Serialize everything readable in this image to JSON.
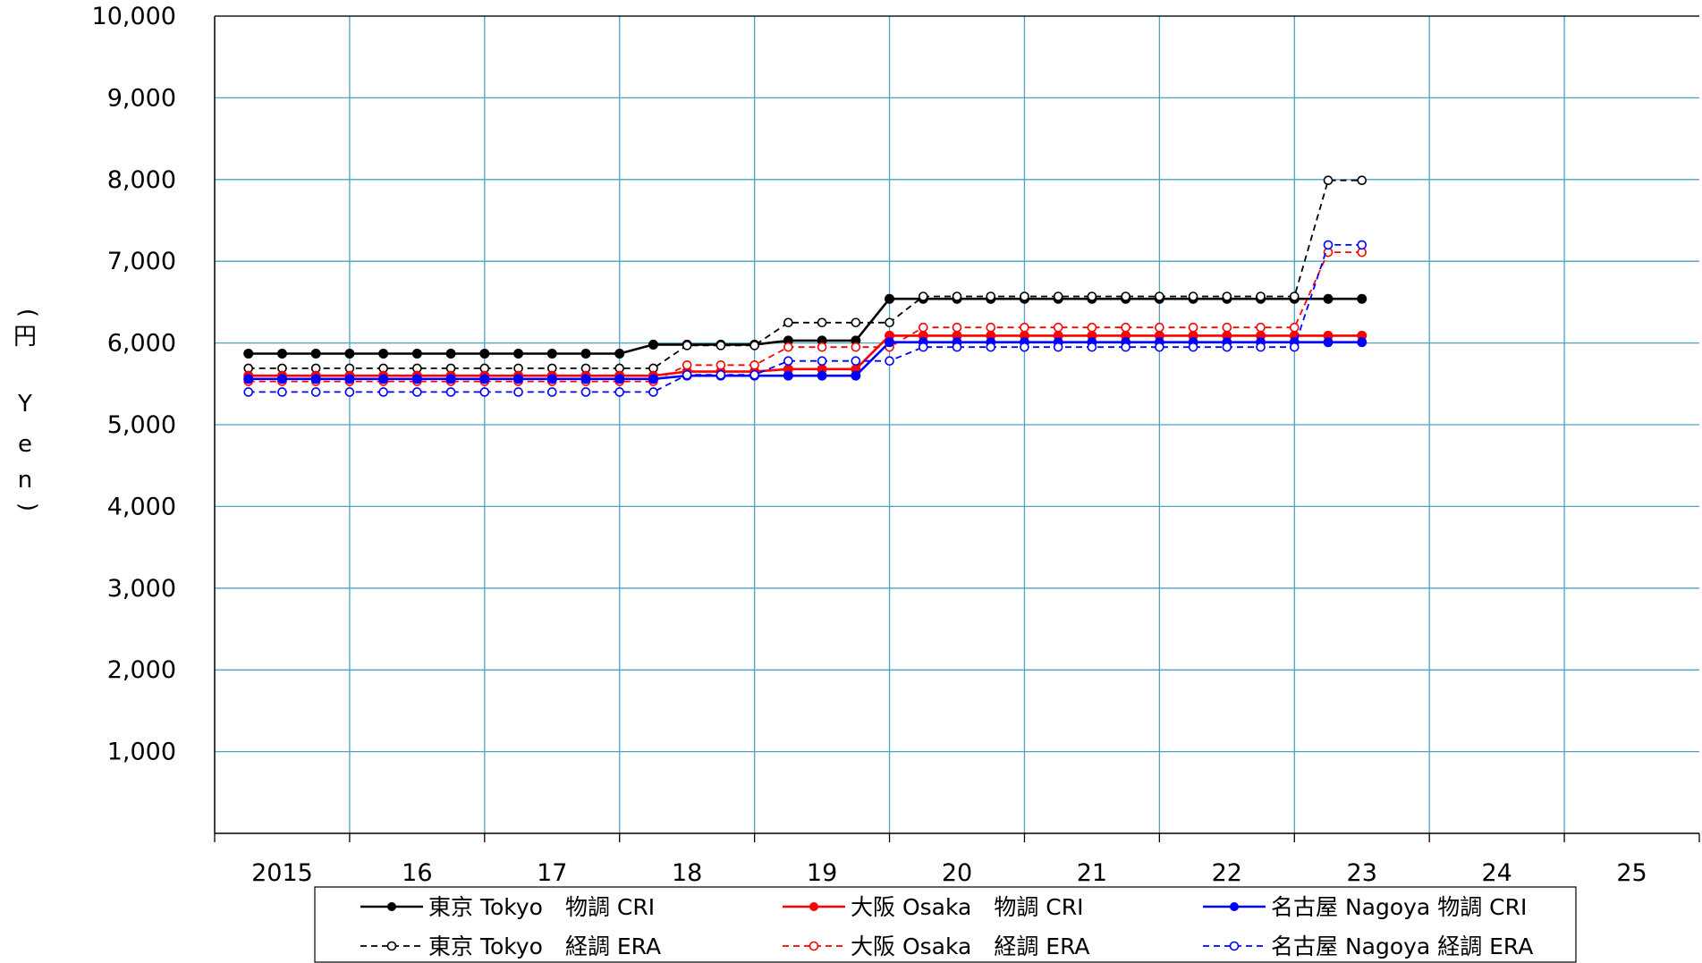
{
  "chart_data": {
    "type": "line",
    "ylabel": [
      "円",
      "Y",
      "e",
      "n"
    ],
    "ylim": [
      0,
      10000
    ],
    "y_ticks": [
      "1,000",
      "2,000",
      "3,000",
      "4,000",
      "5,000",
      "6,000",
      "7,000",
      "8,000",
      "9,000",
      "10,000"
    ],
    "x_ticks": [
      "2015",
      "16",
      "17",
      "18",
      "19",
      "20",
      "21",
      "22",
      "23",
      "24",
      "25"
    ],
    "xlim": [
      2015,
      2026
    ],
    "grid": true,
    "grid_color": "#4aa3c8",
    "legend_position": "bottom",
    "x": [
      2015.25,
      2015.5,
      2015.75,
      2016.0,
      2016.25,
      2016.5,
      2016.75,
      2017.0,
      2017.25,
      2017.5,
      2017.75,
      2018.0,
      2018.25,
      2018.5,
      2018.75,
      2019.0,
      2019.25,
      2019.5,
      2019.75,
      2020.0,
      2020.25,
      2020.5,
      2020.75,
      2021.0,
      2021.25,
      2021.5,
      2021.75,
      2022.0,
      2022.25,
      2022.5,
      2022.75,
      2023.0,
      2023.25,
      2023.5
    ],
    "series": [
      {
        "name": "東京 Tokyo　物調 CRI",
        "color": "#000000",
        "style": "solid",
        "marker": "filled",
        "values": [
          5870,
          5870,
          5870,
          5870,
          5870,
          5870,
          5870,
          5870,
          5870,
          5870,
          5870,
          5870,
          5980,
          5980,
          5980,
          5980,
          6030,
          6030,
          6030,
          6540,
          6540,
          6540,
          6540,
          6540,
          6540,
          6540,
          6540,
          6540,
          6540,
          6540,
          6540,
          6540,
          6540,
          6540
        ]
      },
      {
        "name": "東京 Tokyo　経調 ERA",
        "color": "#000000",
        "style": "dashed",
        "marker": "open",
        "values": [
          5690,
          5690,
          5690,
          5690,
          5690,
          5690,
          5690,
          5690,
          5690,
          5690,
          5690,
          5690,
          5690,
          5970,
          5970,
          5970,
          6250,
          6250,
          6250,
          6250,
          6570,
          6570,
          6570,
          6570,
          6570,
          6570,
          6570,
          6570,
          6570,
          6570,
          6570,
          6570,
          7990,
          7990
        ]
      },
      {
        "name": "大阪 Osaka　物調 CRI",
        "color": "#ff0000",
        "style": "solid",
        "marker": "filled",
        "values": [
          5600,
          5600,
          5600,
          5600,
          5600,
          5600,
          5600,
          5600,
          5600,
          5600,
          5600,
          5600,
          5600,
          5650,
          5650,
          5650,
          5680,
          5680,
          5680,
          6090,
          6090,
          6090,
          6090,
          6090,
          6090,
          6090,
          6090,
          6090,
          6090,
          6090,
          6090,
          6090,
          6090,
          6090
        ]
      },
      {
        "name": "大阪 Osaka　経調 ERA",
        "color": "#ff0000",
        "style": "dashed",
        "marker": "open",
        "values": [
          5530,
          5530,
          5530,
          5530,
          5530,
          5530,
          5530,
          5530,
          5530,
          5530,
          5530,
          5530,
          5530,
          5730,
          5730,
          5730,
          5950,
          5950,
          5950,
          5950,
          6190,
          6190,
          6190,
          6190,
          6190,
          6190,
          6190,
          6190,
          6190,
          6190,
          6190,
          6190,
          7110,
          7110
        ]
      },
      {
        "name": "名古屋 Nagoya 物調 CRI",
        "color": "#0000ff",
        "style": "solid",
        "marker": "filled",
        "values": [
          5560,
          5560,
          5560,
          5560,
          5560,
          5560,
          5560,
          5560,
          5560,
          5560,
          5560,
          5560,
          5560,
          5600,
          5600,
          5600,
          5600,
          5600,
          5600,
          6010,
          6010,
          6010,
          6010,
          6010,
          6010,
          6010,
          6010,
          6010,
          6010,
          6010,
          6010,
          6010,
          6010,
          6010
        ]
      },
      {
        "name": "名古屋 Nagoya 経調 ERA",
        "color": "#0000ff",
        "style": "dashed",
        "marker": "open",
        "values": [
          5400,
          5400,
          5400,
          5400,
          5400,
          5400,
          5400,
          5400,
          5400,
          5400,
          5400,
          5400,
          5400,
          5610,
          5610,
          5610,
          5780,
          5780,
          5780,
          5780,
          5950,
          5950,
          5950,
          5950,
          5950,
          5950,
          5950,
          5950,
          5950,
          5950,
          5950,
          5950,
          7200,
          7200
        ]
      }
    ]
  }
}
